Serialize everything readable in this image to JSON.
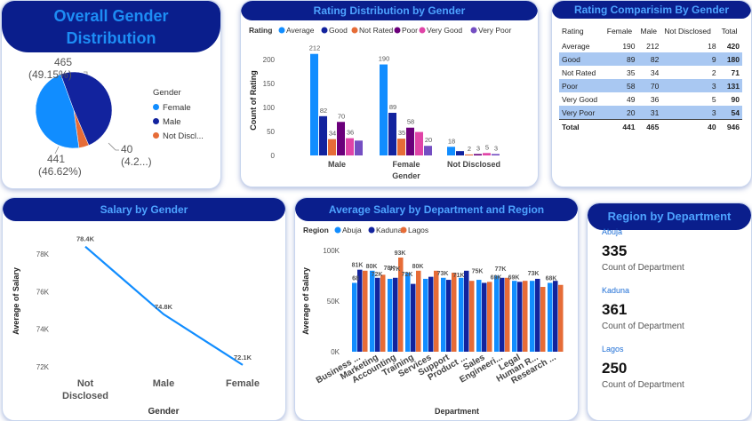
{
  "gender_distribution": {
    "title": "Overall Gender Distribution",
    "legend_title": "Gender",
    "legend": [
      {
        "label": "Female",
        "color": "#118dff"
      },
      {
        "label": "Male",
        "color": "#12239e"
      },
      {
        "label": "Not Discl...",
        "color": "#e66c37"
      }
    ],
    "labels": {
      "male_value": "465",
      "male_pct": "(49.15%)",
      "female_value": "441",
      "female_pct": "(46.62%)",
      "nd_value": "40",
      "nd_pct": "(4.2...)"
    }
  },
  "rating_distribution": {
    "title": "Rating Distribution by Gender",
    "legend_title": "Rating",
    "ylabel": "Count of Rating",
    "xlabel": "Gender"
  },
  "rating_table": {
    "title": "Rating Comparisim By Gender",
    "headers": [
      "Rating",
      "Female",
      "Male",
      "Not Disclosed",
      "Total"
    ],
    "rows": [
      [
        "Average",
        "190",
        "212",
        "18",
        "420"
      ],
      [
        "Good",
        "89",
        "82",
        "9",
        "180"
      ],
      [
        "Not Rated",
        "35",
        "34",
        "2",
        "71"
      ],
      [
        "Poor",
        "58",
        "70",
        "3",
        "131"
      ],
      [
        "Very Good",
        "49",
        "36",
        "5",
        "90"
      ],
      [
        "Very Poor",
        "20",
        "31",
        "3",
        "54"
      ]
    ],
    "total": [
      "Total",
      "441",
      "465",
      "40",
      "946"
    ]
  },
  "salary_gender": {
    "title": "Salary by Gender",
    "ylabel": "Average of Salary",
    "xlabel": "Gender"
  },
  "salary_dept": {
    "title": "Average Salary by Department and Region",
    "legend_title": "Region",
    "ylabel": "Average of Salary",
    "xlabel": "Department"
  },
  "region_panel": {
    "title": "Region by Department",
    "items": [
      {
        "region": "Abuja",
        "value": "335",
        "caption": "Count of Department"
      },
      {
        "region": "Kaduna",
        "value": "361",
        "caption": "Count of Department"
      },
      {
        "region": "Lagos",
        "value": "250",
        "caption": "Count of Department"
      }
    ]
  },
  "chart_data": [
    {
      "type": "pie",
      "title": "Overall Gender Distribution",
      "categories": [
        "Female",
        "Male",
        "Not Disclosed"
      ],
      "values": [
        441,
        465,
        40
      ],
      "colors": [
        "#118dff",
        "#12239e",
        "#e66c37"
      ]
    },
    {
      "type": "bar",
      "title": "Rating Distribution by Gender",
      "categories": [
        "Male",
        "Female",
        "Not Disclosed"
      ],
      "series": [
        {
          "name": "Average",
          "color": "#118dff",
          "values": [
            212,
            190,
            18
          ]
        },
        {
          "name": "Good",
          "color": "#12239e",
          "values": [
            82,
            89,
            9
          ]
        },
        {
          "name": "Not Rated",
          "color": "#e66c37",
          "values": [
            34,
            35,
            2
          ]
        },
        {
          "name": "Poor",
          "color": "#6b007b",
          "values": [
            70,
            58,
            3
          ]
        },
        {
          "name": "Very Good",
          "color": "#e044a7",
          "values": [
            36,
            49,
            5
          ]
        },
        {
          "name": "Very Poor",
          "color": "#744ec2",
          "values": [
            31,
            20,
            3
          ]
        }
      ],
      "data_labels": [
        [
          "212",
          "82",
          "34",
          "70",
          "36",
          ""
        ],
        [
          "190",
          "89",
          "35",
          "58",
          "",
          "20"
        ],
        [
          "18",
          "",
          "2",
          "3",
          "5",
          "3"
        ]
      ],
      "yticks": [
        0,
        50,
        100,
        150,
        200
      ],
      "ylim": [
        0,
        230
      ],
      "xlabel": "Gender",
      "ylabel": "Count of Rating"
    },
    {
      "type": "line",
      "title": "Salary by Gender",
      "categories": [
        "Not Disclosed",
        "Male",
        "Female"
      ],
      "category_labels": [
        [
          "Not",
          "Disclosed"
        ],
        [
          "Male"
        ],
        [
          "Female"
        ]
      ],
      "values": [
        78.4,
        74.8,
        72.1
      ],
      "value_labels": [
        "78.4K",
        "74.8K",
        "72.1K"
      ],
      "yticks": [
        72,
        74,
        76,
        78
      ],
      "ytick_labels": [
        "72K",
        "74K",
        "76K",
        "78K"
      ],
      "ylim": [
        72,
        79
      ],
      "color": "#118dff",
      "xlabel": "Gender",
      "ylabel": "Average of Salary"
    },
    {
      "type": "bar",
      "title": "Average Salary by Department and Region",
      "categories": [
        "Business ...",
        "Marketing",
        "Accounting",
        "Training",
        "Services",
        "Support",
        "Product ...",
        "Sales",
        "Engineeri...",
        "Legal",
        "Human R...",
        "Research ..."
      ],
      "series": [
        {
          "name": "Abuja",
          "color": "#118dff",
          "values": [
            68,
            80,
            72,
            78,
            72,
            73,
            73,
            71,
            75,
            70,
            70,
            68
          ]
        },
        {
          "name": "Kaduna",
          "color": "#12239e",
          "values": [
            81,
            73,
            73,
            67,
            74,
            71,
            80,
            68,
            73,
            69,
            72,
            70
          ]
        },
        {
          "name": "Lagos",
          "color": "#e66c37",
          "values": [
            80,
            76,
            93,
            80,
            80,
            78,
            70,
            69,
            73,
            70,
            64,
            66
          ]
        }
      ],
      "data_labels": [
        "68",
        "81K",
        "80K",
        "72K",
        "78K",
        "77K",
        "72K",
        "80K",
        "71K",
        "73K",
        "80K",
        "71K",
        "75K",
        "69K",
        "77K",
        "69K",
        "73K",
        "68K",
        "93K"
      ],
      "yticks": [
        0,
        50,
        100
      ],
      "ytick_labels": [
        "0K",
        "50K",
        "100K"
      ],
      "ylim": [
        0,
        100
      ],
      "xlabel": "Department",
      "ylabel": "Average of Salary"
    }
  ]
}
